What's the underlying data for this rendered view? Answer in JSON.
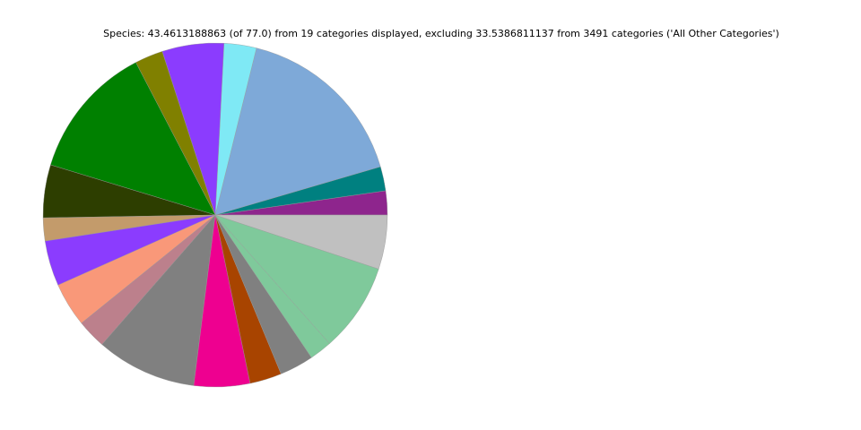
{
  "chart_data": {
    "type": "pie",
    "title": "Species: 43.4613188863 (of 77.0) from 19 categories displayed, excluding 33.5386811137 from 3491 categories ('All Other Categories')",
    "values": [
      0.98,
      0.99,
      7.22,
      1.32,
      2.52,
      1.15,
      5.5,
      2.16,
      0.94,
      1.85,
      1.8,
      1.19,
      4.1,
      2.28,
      1.3,
      1.39,
      0.92,
      3.63,
      2.21
    ],
    "colors": [
      "#8e258d",
      "#008080",
      "#7ea9d8",
      "#7fe9f5",
      "#8b3cfe",
      "#808000",
      "#008000",
      "#2d3e00",
      "#c39b6b",
      "#8b3cfe",
      "#f99879",
      "#bc808c",
      "#808080",
      "#ee0090",
      "#a84400",
      "#808080",
      "#7fc99b",
      "#7fc99b",
      "#c0c0c0"
    ],
    "start_angle": 0,
    "counterclockwise": true
  }
}
